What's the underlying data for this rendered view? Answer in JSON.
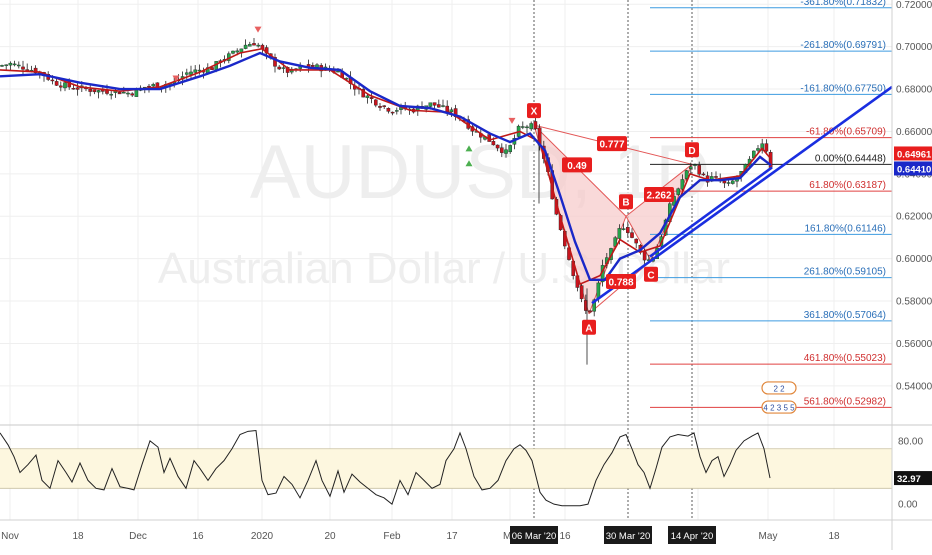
{
  "watermark": {
    "symbol": "AUDUSD, 1D",
    "name": "Australian Dollar / U.S. Dollar"
  },
  "colors": {
    "bg": "#ffffff",
    "candle_up": "#26a24b",
    "candle_down": "#c8141e",
    "ma_blue": "#1a28c8",
    "ma_red": "#c01818",
    "pattern_fill": "#f7c9c9",
    "pattern_line": "#e35656",
    "trend_line": "#1a2ee0",
    "fib_blue": "#3d9be0",
    "fib_red": "#e04040",
    "fib_text_blue": "#2a6fb8",
    "fib_text_red": "#d03030",
    "osc_band": "#fdf7df",
    "osc_line": "#222222",
    "grid": "#efefef",
    "axis_text": "#555555"
  },
  "chart_data": [
    {
      "type": "candlestick",
      "title": "",
      "instrument": "AUDUSD",
      "timeframe": "1D",
      "ylim": [
        0.522,
        0.722
      ],
      "y_ticks": [
        "0.72000",
        "0.70000",
        "0.68000",
        "0.66000",
        "0.64000",
        "0.62000",
        "0.60000",
        "0.58000",
        "0.56000",
        "0.54000"
      ],
      "x_ticks": [
        "Nov",
        "18",
        "Dec",
        "16",
        "2020",
        "20",
        "Feb",
        "17",
        "Ma",
        "16",
        "Apr",
        "May",
        "18"
      ],
      "x_markers": [
        "06 Mar '20",
        "30 Mar '20",
        "14 Apr '20"
      ],
      "price_labels": [
        {
          "value": 0.64961,
          "text": "0.64961",
          "color": "#e81e1e"
        },
        {
          "value": 0.6441,
          "text": "0.64410",
          "color": "#1a28c8"
        }
      ],
      "close_path": [
        [
          0,
          0.691
        ],
        [
          10,
          0.692
        ],
        [
          25,
          0.69
        ],
        [
          40,
          0.688
        ],
        [
          55,
          0.683
        ],
        [
          70,
          0.681
        ],
        [
          85,
          0.68
        ],
        [
          100,
          0.679
        ],
        [
          115,
          0.679
        ],
        [
          130,
          0.678
        ],
        [
          145,
          0.681
        ],
        [
          160,
          0.682
        ],
        [
          175,
          0.683
        ],
        [
          188,
          0.688
        ],
        [
          200,
          0.689
        ],
        [
          212,
          0.69
        ],
        [
          222,
          0.694
        ],
        [
          234,
          0.697
        ],
        [
          246,
          0.701
        ],
        [
          256,
          0.702
        ],
        [
          264,
          0.697
        ],
        [
          272,
          0.693
        ],
        [
          282,
          0.689
        ],
        [
          292,
          0.688
        ],
        [
          300,
          0.69
        ],
        [
          310,
          0.691
        ],
        [
          320,
          0.69
        ],
        [
          330,
          0.689
        ],
        [
          340,
          0.688
        ],
        [
          352,
          0.682
        ],
        [
          362,
          0.678
        ],
        [
          372,
          0.675
        ],
        [
          382,
          0.672
        ],
        [
          392,
          0.67
        ],
        [
          402,
          0.671
        ],
        [
          412,
          0.67
        ],
        [
          422,
          0.672
        ],
        [
          432,
          0.673
        ],
        [
          442,
          0.671
        ],
        [
          452,
          0.669
        ],
        [
          462,
          0.666
        ],
        [
          472,
          0.661
        ],
        [
          482,
          0.658
        ],
        [
          492,
          0.655
        ],
        [
          500,
          0.652
        ],
        [
          506,
          0.65
        ],
        [
          512,
          0.654
        ],
        [
          518,
          0.661
        ],
        [
          524,
          0.662
        ],
        [
          530,
          0.663
        ],
        [
          536,
          0.66
        ],
        [
          542,
          0.65
        ],
        [
          548,
          0.64
        ],
        [
          554,
          0.625
        ],
        [
          560,
          0.615
        ],
        [
          566,
          0.605
        ],
        [
          572,
          0.595
        ],
        [
          578,
          0.586
        ],
        [
          584,
          0.576
        ],
        [
          588,
          0.574
        ],
        [
          593,
          0.578
        ],
        [
          598,
          0.587
        ],
        [
          602,
          0.596
        ],
        [
          607,
          0.601
        ],
        [
          612,
          0.604
        ],
        [
          617,
          0.611
        ],
        [
          622,
          0.616
        ],
        [
          627,
          0.614
        ],
        [
          632,
          0.61
        ],
        [
          637,
          0.606
        ],
        [
          642,
          0.602
        ],
        [
          647,
          0.599
        ],
        [
          652,
          0.6
        ],
        [
          657,
          0.605
        ],
        [
          662,
          0.612
        ],
        [
          667,
          0.62
        ],
        [
          672,
          0.628
        ],
        [
          677,
          0.632
        ],
        [
          682,
          0.637
        ],
        [
          687,
          0.641
        ],
        [
          692,
          0.645
        ],
        [
          697,
          0.643
        ],
        [
          702,
          0.639
        ],
        [
          707,
          0.637
        ],
        [
          712,
          0.638
        ],
        [
          717,
          0.637
        ],
        [
          722,
          0.636
        ],
        [
          727,
          0.634
        ],
        [
          732,
          0.636
        ],
        [
          737,
          0.638
        ],
        [
          742,
          0.641
        ],
        [
          747,
          0.644
        ],
        [
          752,
          0.648
        ],
        [
          757,
          0.652
        ],
        [
          762,
          0.655
        ],
        [
          767,
          0.651
        ],
        [
          771,
          0.643
        ]
      ],
      "ma_blue": [
        [
          0,
          0.686
        ],
        [
          40,
          0.687
        ],
        [
          80,
          0.683
        ],
        [
          120,
          0.68
        ],
        [
          160,
          0.68
        ],
        [
          200,
          0.686
        ],
        [
          230,
          0.691
        ],
        [
          260,
          0.697
        ],
        [
          280,
          0.693
        ],
        [
          310,
          0.69
        ],
        [
          340,
          0.689
        ],
        [
          370,
          0.679
        ],
        [
          400,
          0.672
        ],
        [
          430,
          0.671
        ],
        [
          460,
          0.667
        ],
        [
          490,
          0.659
        ],
        [
          510,
          0.655
        ],
        [
          530,
          0.659
        ],
        [
          545,
          0.651
        ],
        [
          560,
          0.63
        ],
        [
          575,
          0.608
        ],
        [
          590,
          0.59
        ],
        [
          605,
          0.59
        ],
        [
          620,
          0.6
        ],
        [
          640,
          0.604
        ],
        [
          660,
          0.612
        ],
        [
          680,
          0.629
        ],
        [
          700,
          0.637
        ],
        [
          720,
          0.637
        ],
        [
          740,
          0.638
        ],
        [
          760,
          0.648
        ],
        [
          771,
          0.644
        ]
      ],
      "ma_red": [
        [
          0,
          0.689
        ],
        [
          40,
          0.688
        ],
        [
          80,
          0.681
        ],
        [
          120,
          0.679
        ],
        [
          160,
          0.681
        ],
        [
          200,
          0.688
        ],
        [
          240,
          0.697
        ],
        [
          262,
          0.699
        ],
        [
          290,
          0.689
        ],
        [
          330,
          0.689
        ],
        [
          370,
          0.677
        ],
        [
          410,
          0.67
        ],
        [
          450,
          0.669
        ],
        [
          490,
          0.656
        ],
        [
          520,
          0.66
        ],
        [
          540,
          0.655
        ],
        [
          560,
          0.62
        ],
        [
          580,
          0.588
        ],
        [
          600,
          0.592
        ],
        [
          620,
          0.609
        ],
        [
          640,
          0.603
        ],
        [
          660,
          0.606
        ],
        [
          690,
          0.64
        ],
        [
          710,
          0.637
        ],
        [
          740,
          0.639
        ],
        [
          762,
          0.652
        ],
        [
          771,
          0.647
        ]
      ],
      "xabcd": {
        "points": [
          {
            "label": "X",
            "x": 534,
            "y": 0.663
          },
          {
            "label": "A",
            "x": 589,
            "y": 0.574
          },
          {
            "label": "B",
            "x": 626,
            "y": 0.62
          },
          {
            "label": "C",
            "x": 651,
            "y": 0.599
          },
          {
            "label": "D",
            "x": 692,
            "y": 0.6445
          }
        ],
        "ratios": [
          {
            "text": "0.777",
            "x": 612,
            "y": 0.654
          },
          {
            "text": "0.49",
            "x": 577,
            "y": 0.644
          },
          {
            "text": "0.788",
            "x": 621,
            "y": 0.589
          },
          {
            "text": "2.262",
            "x": 659,
            "y": 0.63
          }
        ]
      },
      "trendlines": [
        {
          "from": [
            592,
            0.579
          ],
          "to": [
            892,
            0.681
          ]
        },
        {
          "from": [
            650,
            0.601
          ],
          "to": [
            772,
            0.643
          ]
        }
      ],
      "fib_levels": [
        {
          "label": "-361.80%(0.71832)",
          "value": 0.71832,
          "color": "#3d9be0"
        },
        {
          "label": "-261.80%(0.69791)",
          "value": 0.69791,
          "color": "#3d9be0"
        },
        {
          "label": "-161.80%(0.67750)",
          "value": 0.6775,
          "color": "#3d9be0"
        },
        {
          "label": "-61.80%(0.65709)",
          "value": 0.65709,
          "color": "#e04040"
        },
        {
          "label": "0.00%(0.64448)",
          "value": 0.64448,
          "color": "#222222"
        },
        {
          "label": "61.80%(0.63187)",
          "value": 0.63187,
          "color": "#e04040"
        },
        {
          "label": "161.80%(0.61146)",
          "value": 0.61146,
          "color": "#3d9be0"
        },
        {
          "label": "261.80%(0.59105)",
          "value": 0.59105,
          "color": "#3d9be0"
        },
        {
          "label": "361.80%(0.57064)",
          "value": 0.57064,
          "color": "#3d9be0"
        },
        {
          "label": "461.80%(0.55023)",
          "value": 0.55023,
          "color": "#e04040"
        },
        {
          "label": "561.80%(0.52982)",
          "value": 0.52982,
          "color": "#e04040"
        }
      ],
      "signal_markers": [
        {
          "kind": "down",
          "x": 176,
          "y": 0.685
        },
        {
          "kind": "down",
          "x": 258,
          "y": 0.708
        },
        {
          "kind": "down",
          "x": 512,
          "y": 0.665
        },
        {
          "kind": "up",
          "x": 469,
          "y": 0.652
        },
        {
          "kind": "up",
          "x": 469,
          "y": 0.645
        }
      ],
      "event_badges": [
        {
          "text": "2 2",
          "x": 779,
          "y": 0.539
        },
        {
          "text": "4 2 3 5 5",
          "x": 779,
          "y": 0.53
        }
      ]
    },
    {
      "type": "line",
      "title": "",
      "ylim": [
        -20,
        100
      ],
      "y_ticks": [
        "80.00",
        "0.00"
      ],
      "band": [
        20,
        70
      ],
      "last_value": "32.97",
      "points": [
        [
          0,
          90
        ],
        [
          8,
          75
        ],
        [
          14,
          60
        ],
        [
          20,
          40
        ],
        [
          28,
          50
        ],
        [
          36,
          62
        ],
        [
          42,
          30
        ],
        [
          50,
          20
        ],
        [
          58,
          55
        ],
        [
          66,
          40
        ],
        [
          72,
          28
        ],
        [
          80,
          52
        ],
        [
          88,
          30
        ],
        [
          96,
          20
        ],
        [
          104,
          18
        ],
        [
          112,
          45
        ],
        [
          120,
          22
        ],
        [
          128,
          20
        ],
        [
          134,
          18
        ],
        [
          142,
          50
        ],
        [
          150,
          80
        ],
        [
          158,
          72
        ],
        [
          164,
          40
        ],
        [
          170,
          58
        ],
        [
          178,
          35
        ],
        [
          186,
          20
        ],
        [
          194,
          55
        ],
        [
          200,
          45
        ],
        [
          208,
          30
        ],
        [
          216,
          45
        ],
        [
          224,
          55
        ],
        [
          232,
          70
        ],
        [
          240,
          88
        ],
        [
          248,
          92
        ],
        [
          256,
          93
        ],
        [
          262,
          30
        ],
        [
          268,
          12
        ],
        [
          276,
          14
        ],
        [
          284,
          35
        ],
        [
          292,
          25
        ],
        [
          300,
          8
        ],
        [
          308,
          30
        ],
        [
          316,
          55
        ],
        [
          322,
          30
        ],
        [
          330,
          10
        ],
        [
          338,
          42
        ],
        [
          344,
          15
        ],
        [
          352,
          38
        ],
        [
          360,
          28
        ],
        [
          368,
          20
        ],
        [
          376,
          12
        ],
        [
          384,
          8
        ],
        [
          392,
          0
        ],
        [
          400,
          30
        ],
        [
          408,
          12
        ],
        [
          416,
          40
        ],
        [
          424,
          30
        ],
        [
          432,
          20
        ],
        [
          440,
          25
        ],
        [
          446,
          55
        ],
        [
          454,
          70
        ],
        [
          460,
          90
        ],
        [
          466,
          70
        ],
        [
          474,
          35
        ],
        [
          482,
          18
        ],
        [
          490,
          20
        ],
        [
          498,
          30
        ],
        [
          506,
          55
        ],
        [
          514,
          70
        ],
        [
          520,
          75
        ],
        [
          526,
          68
        ],
        [
          532,
          55
        ],
        [
          540,
          15
        ],
        [
          546,
          5
        ],
        [
          554,
          0
        ],
        [
          562,
          -2
        ],
        [
          572,
          -2
        ],
        [
          580,
          -2
        ],
        [
          588,
          0
        ],
        [
          596,
          30
        ],
        [
          604,
          50
        ],
        [
          612,
          65
        ],
        [
          620,
          85
        ],
        [
          626,
          88
        ],
        [
          632,
          70
        ],
        [
          638,
          50
        ],
        [
          644,
          40
        ],
        [
          650,
          20
        ],
        [
          656,
          45
        ],
        [
          662,
          72
        ],
        [
          670,
          85
        ],
        [
          678,
          88
        ],
        [
          688,
          86
        ],
        [
          694,
          90
        ],
        [
          700,
          60
        ],
        [
          706,
          40
        ],
        [
          712,
          55
        ],
        [
          718,
          60
        ],
        [
          724,
          35
        ],
        [
          730,
          50
        ],
        [
          736,
          68
        ],
        [
          744,
          80
        ],
        [
          752,
          86
        ],
        [
          758,
          90
        ],
        [
          764,
          70
        ],
        [
          770,
          32.97
        ]
      ]
    }
  ]
}
